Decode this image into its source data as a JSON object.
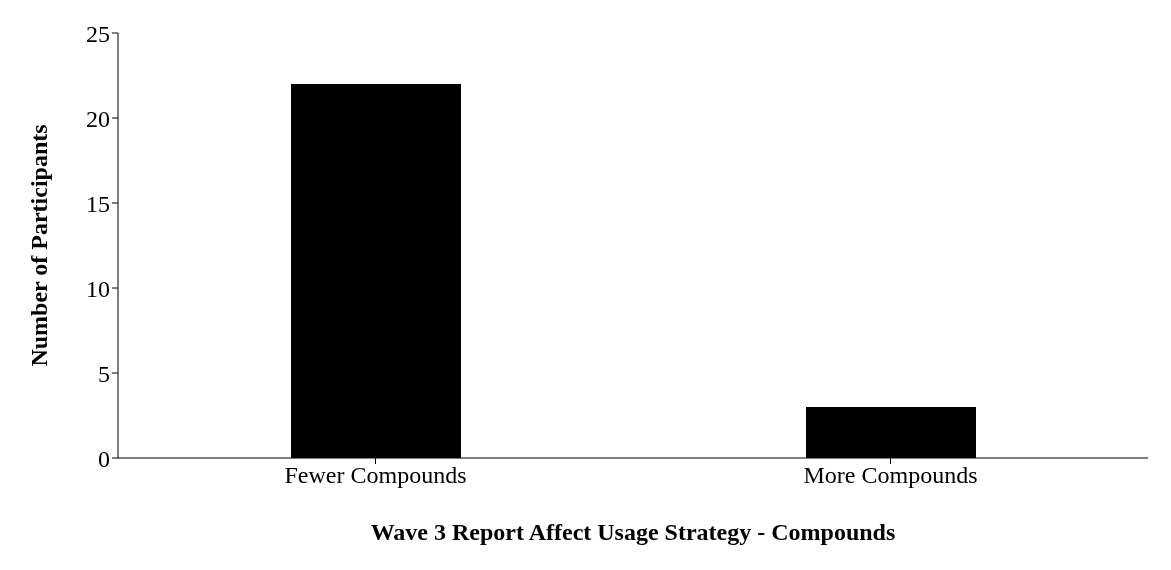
{
  "chart_data": {
    "type": "bar",
    "xlabel": "Wave 3 Report Affect Usage Strategy - Compounds",
    "ylabel": "Number of Participants",
    "categories": [
      "Fewer Compounds",
      "More Compounds"
    ],
    "values": [
      22,
      3
    ],
    "color": "#000000",
    "ylim": [
      0,
      25
    ],
    "yticks": [
      0,
      5,
      10,
      15,
      20,
      25
    ],
    "grid": false,
    "legend": false
  }
}
